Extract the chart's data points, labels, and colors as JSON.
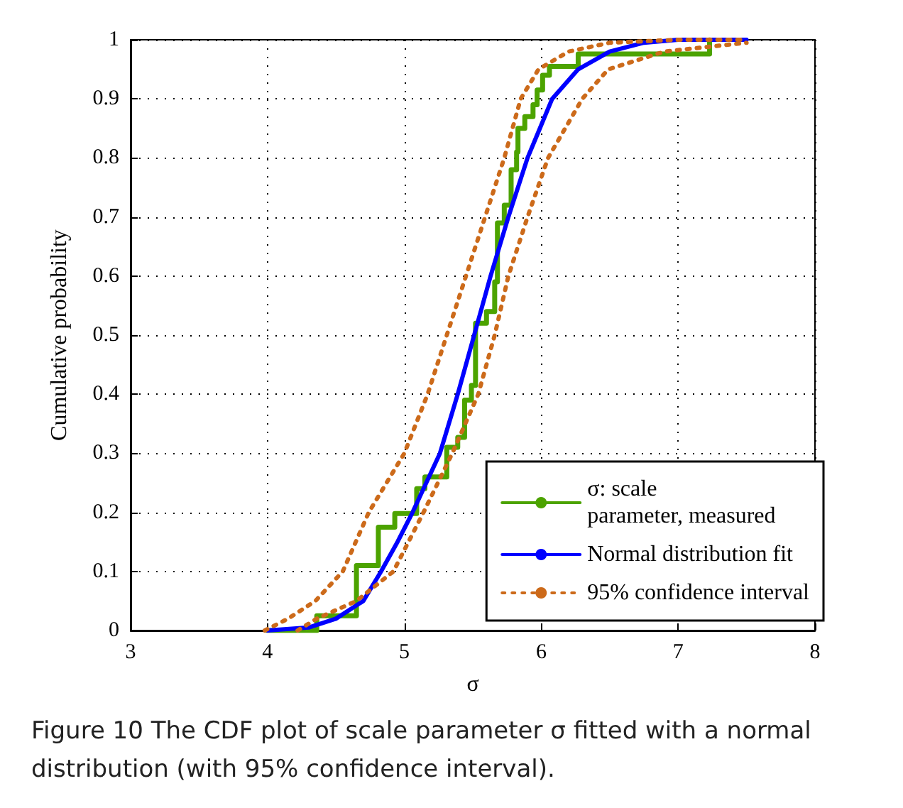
{
  "chart_data": {
    "type": "line",
    "xlabel": "σ",
    "ylabel": "Cumulative probability",
    "annotations": [
      "Figure 10  The CDF plot of scale parameter σ fitted with a normal distribution (with 95% confidence interval)."
    ],
    "xlim": [
      3,
      8
    ],
    "xticks": [
      3,
      4,
      5,
      6,
      7,
      8
    ],
    "ylim": [
      0,
      1
    ],
    "yticks": [
      0,
      0.1,
      0.2,
      0.3,
      0.4,
      0.5,
      0.6,
      0.7,
      0.8,
      0.9,
      1
    ],
    "grid": true,
    "legend": "bottom right",
    "marker": "none",
    "series": [
      {
        "name": "σ: scale\nparameter, measured",
        "type": "step",
        "color": "#4ca300",
        "line_style": "solid",
        "x": [
          4.0,
          4.36,
          4.65,
          4.81,
          4.93,
          5.09,
          5.15,
          5.31,
          5.39,
          5.44,
          5.49,
          5.52,
          5.6,
          5.66,
          5.68,
          5.73,
          5.78,
          5.82,
          5.83,
          5.88,
          5.94,
          5.97,
          6.01,
          6.06,
          6.27,
          7.23
        ],
        "values": [
          0,
          0.025,
          0.11,
          0.175,
          0.198,
          0.24,
          0.26,
          0.31,
          0.327,
          0.39,
          0.415,
          0.52,
          0.54,
          0.59,
          0.69,
          0.72,
          0.78,
          0.81,
          0.85,
          0.87,
          0.89,
          0.915,
          0.94,
          0.955,
          0.976,
          1
        ]
      },
      {
        "name": "Normal distribution fit",
        "color": "#0000ff",
        "line_style": "solid",
        "x": [
          4.0,
          4.3,
          4.5,
          4.7,
          4.83,
          4.95,
          5.06,
          5.16,
          5.26,
          5.39,
          5.51,
          5.63,
          5.76,
          5.9,
          6.08,
          6.27,
          6.5,
          6.75,
          7.0,
          7.5
        ],
        "values": [
          0,
          0.005,
          0.02,
          0.05,
          0.1,
          0.15,
          0.2,
          0.25,
          0.3,
          0.4,
          0.5,
          0.6,
          0.7,
          0.8,
          0.9,
          0.95,
          0.98,
          0.995,
          1,
          1
        ]
      },
      {
        "name": "95% confidence interval",
        "color": "#cc6a1a",
        "line_style": "dotted",
        "x": [
          3.98,
          4.15,
          4.35,
          4.55,
          4.74,
          5.0,
          5.17,
          5.31,
          5.45,
          5.59,
          5.73,
          5.85,
          5.98,
          6.2,
          6.5,
          7.0,
          7.5
        ],
        "values": [
          0,
          0.02,
          0.05,
          0.1,
          0.2,
          0.3,
          0.4,
          0.5,
          0.6,
          0.7,
          0.8,
          0.9,
          0.95,
          0.98,
          0.995,
          1,
          1
        ]
      },
      {
        "color": "#cc6a1a",
        "line_style": "dotted",
        "x": [
          4.22,
          4.36,
          4.65,
          4.92,
          5.14,
          5.35,
          5.54,
          5.66,
          5.76,
          5.9,
          6.05,
          6.3,
          6.49,
          6.9,
          7.5
        ],
        "values": [
          0,
          0.02,
          0.05,
          0.1,
          0.2,
          0.3,
          0.4,
          0.5,
          0.6,
          0.7,
          0.8,
          0.9,
          0.95,
          0.98,
          0.995
        ]
      }
    ]
  }
}
